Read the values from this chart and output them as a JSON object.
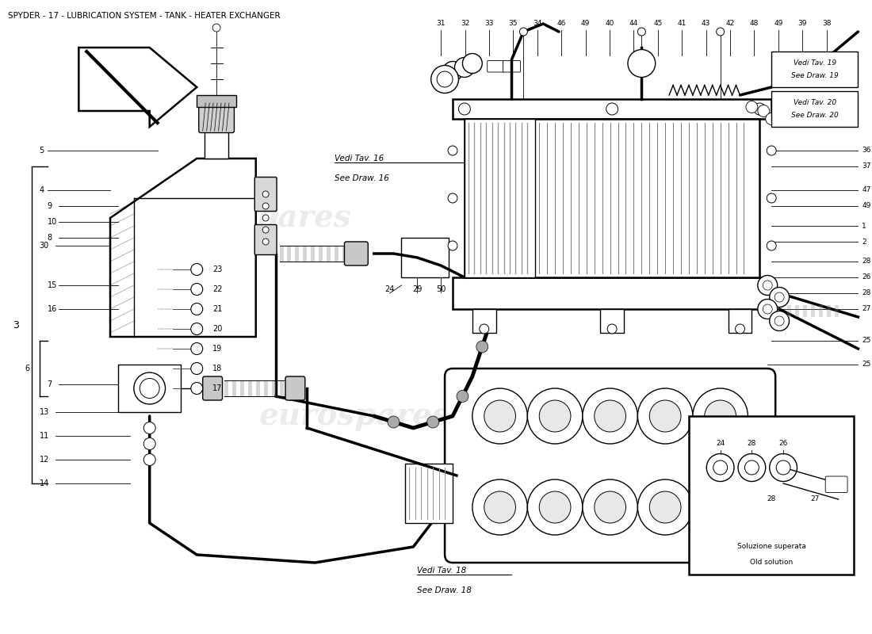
{
  "title": "SPYDER - 17 - LUBRICATION SYSTEM - TANK - HEATER EXCHANGER",
  "title_fontsize": 7.5,
  "bg_color": "#ffffff",
  "watermark": "eurospares",
  "watermark_color": "#d8d8d8",
  "watermark_alpha": 0.5,
  "figsize": [
    11.0,
    8.0
  ],
  "dpi": 100,
  "top_nums": [
    "31",
    "32",
    "33",
    "35",
    "34",
    "46",
    "49",
    "40",
    "44",
    "45",
    "41",
    "43",
    "42",
    "48",
    "49",
    "39",
    "38"
  ],
  "right_nums": [
    "36",
    "37",
    "47",
    "49",
    "1",
    "2",
    "28",
    "26",
    "28",
    "27",
    "25"
  ],
  "mid_stacked": [
    "23",
    "22",
    "21",
    "20",
    "19",
    "18",
    "17"
  ],
  "bottom_labels": [
    "24",
    "29",
    "50"
  ],
  "note16_l1": "Vedi Tav. 16",
  "note16_l2": "See Draw. 16",
  "note18_l1": "Vedi Tav. 18",
  "note18_l2": "See Draw. 18",
  "note19_l1": "Vedi Tav. 19",
  "note19_l2": "See Draw. 19",
  "note20_l1": "Vedi Tav. 20",
  "note20_l2": "See Draw. 20",
  "inset_note_l1": "Soluzione superata",
  "inset_note_l2": "Old solution",
  "inset_top_labels": [
    "24",
    "28",
    "26"
  ],
  "inset_bot_labels": [
    "28",
    "27"
  ]
}
